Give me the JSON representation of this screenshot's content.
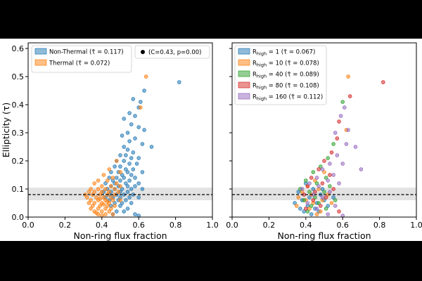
{
  "chart_data": [
    {
      "type": "scatter",
      "xlabel": "Non-ring flux fraction",
      "ylabel": "Ellipticity (τ)",
      "xlim": [
        0.0,
        1.0
      ],
      "ylim": [
        0.0,
        0.62
      ],
      "xticks": [
        "0.0",
        "0.2",
        "0.4",
        "0.6",
        "0.8",
        "1.0"
      ],
      "yticks": [
        "0.0",
        "0.1",
        "0.2",
        "0.3",
        "0.4",
        "0.5",
        "0.6"
      ],
      "reference_line": {
        "y": 0.08,
        "band": [
          0.06,
          0.105
        ]
      },
      "legend_left": [
        {
          "label": "Non-Thermal (τ̄ = 0.117)",
          "color": "#1f77b4"
        },
        {
          "label": "Thermal (τ̄ = 0.072)",
          "color": "#ff7f0e"
        }
      ],
      "legend_right": [
        {
          "label": "(C=0.43, p=0.00)",
          "color": "#000000"
        }
      ],
      "series": [
        {
          "name": "Non-Thermal",
          "color": "#1f77b4",
          "points": [
            [
              0.82,
              0.48
            ],
            [
              0.63,
              0.45
            ],
            [
              0.61,
              0.41
            ],
            [
              0.57,
              0.42
            ],
            [
              0.6,
              0.39
            ],
            [
              0.55,
              0.37
            ],
            [
              0.52,
              0.35
            ],
            [
              0.58,
              0.36
            ],
            [
              0.56,
              0.33
            ],
            [
              0.6,
              0.32
            ],
            [
              0.63,
              0.31
            ],
            [
              0.54,
              0.3
            ],
            [
              0.51,
              0.29
            ],
            [
              0.58,
              0.28
            ],
            [
              0.55,
              0.27
            ],
            [
              0.62,
              0.26
            ],
            [
              0.67,
              0.25
            ],
            [
              0.52,
              0.25
            ],
            [
              0.54,
              0.24
            ],
            [
              0.57,
              0.23
            ],
            [
              0.53,
              0.22
            ],
            [
              0.5,
              0.22
            ],
            [
              0.56,
              0.21
            ],
            [
              0.6,
              0.21
            ],
            [
              0.48,
              0.2
            ],
            [
              0.52,
              0.2
            ],
            [
              0.55,
              0.19
            ],
            [
              0.59,
              0.19
            ],
            [
              0.5,
              0.18
            ],
            [
              0.47,
              0.18
            ],
            [
              0.53,
              0.17
            ],
            [
              0.57,
              0.17
            ],
            [
              0.45,
              0.16
            ],
            [
              0.49,
              0.16
            ],
            [
              0.54,
              0.16
            ],
            [
              0.62,
              0.16
            ],
            [
              0.51,
              0.15
            ],
            [
              0.56,
              0.15
            ],
            [
              0.44,
              0.14
            ],
            [
              0.48,
              0.14
            ],
            [
              0.52,
              0.14
            ],
            [
              0.58,
              0.14
            ],
            [
              0.46,
              0.13
            ],
            [
              0.5,
              0.13
            ],
            [
              0.55,
              0.13
            ],
            [
              0.42,
              0.12
            ],
            [
              0.47,
              0.12
            ],
            [
              0.53,
              0.12
            ],
            [
              0.6,
              0.12
            ],
            [
              0.45,
              0.11
            ],
            [
              0.49,
              0.11
            ],
            [
              0.54,
              0.11
            ],
            [
              0.58,
              0.11
            ],
            [
              0.43,
              0.1
            ],
            [
              0.47,
              0.1
            ],
            [
              0.51,
              0.1
            ],
            [
              0.56,
              0.1
            ],
            [
              0.62,
              0.1
            ],
            [
              0.41,
              0.09
            ],
            [
              0.45,
              0.09
            ],
            [
              0.5,
              0.09
            ],
            [
              0.54,
              0.09
            ],
            [
              0.44,
              0.08
            ],
            [
              0.48,
              0.08
            ],
            [
              0.52,
              0.08
            ],
            [
              0.57,
              0.08
            ],
            [
              0.42,
              0.07
            ],
            [
              0.46,
              0.07
            ],
            [
              0.5,
              0.07
            ],
            [
              0.55,
              0.07
            ],
            [
              0.6,
              0.07
            ],
            [
              0.44,
              0.06
            ],
            [
              0.49,
              0.06
            ],
            [
              0.53,
              0.06
            ],
            [
              0.47,
              0.05
            ],
            [
              0.51,
              0.05
            ],
            [
              0.56,
              0.05
            ],
            [
              0.45,
              0.04
            ],
            [
              0.5,
              0.04
            ],
            [
              0.54,
              0.03
            ],
            [
              0.48,
              0.02
            ],
            [
              0.52,
              0.02
            ],
            [
              0.58,
              0.01
            ],
            [
              0.46,
              0.01
            ],
            [
              0.6,
              0.005
            ]
          ]
        },
        {
          "name": "Thermal",
          "color": "#ff7f0e",
          "points": [
            [
              0.64,
              0.5
            ],
            [
              0.61,
              0.39
            ],
            [
              0.48,
              0.2
            ],
            [
              0.44,
              0.17
            ],
            [
              0.5,
              0.16
            ],
            [
              0.41,
              0.15
            ],
            [
              0.46,
              0.14
            ],
            [
              0.38,
              0.13
            ],
            [
              0.43,
              0.13
            ],
            [
              0.48,
              0.12
            ],
            [
              0.36,
              0.12
            ],
            [
              0.4,
              0.11
            ],
            [
              0.45,
              0.11
            ],
            [
              0.5,
              0.11
            ],
            [
              0.34,
              0.1
            ],
            [
              0.38,
              0.1
            ],
            [
              0.42,
              0.1
            ],
            [
              0.47,
              0.1
            ],
            [
              0.33,
              0.09
            ],
            [
              0.36,
              0.09
            ],
            [
              0.4,
              0.09
            ],
            [
              0.44,
              0.09
            ],
            [
              0.49,
              0.09
            ],
            [
              0.31,
              0.08
            ],
            [
              0.35,
              0.08
            ],
            [
              0.39,
              0.08
            ],
            [
              0.43,
              0.08
            ],
            [
              0.47,
              0.08
            ],
            [
              0.32,
              0.07
            ],
            [
              0.37,
              0.07
            ],
            [
              0.41,
              0.07
            ],
            [
              0.45,
              0.07
            ],
            [
              0.34,
              0.06
            ],
            [
              0.38,
              0.06
            ],
            [
              0.42,
              0.06
            ],
            [
              0.46,
              0.06
            ],
            [
              0.5,
              0.06
            ],
            [
              0.33,
              0.05
            ],
            [
              0.36,
              0.05
            ],
            [
              0.4,
              0.05
            ],
            [
              0.44,
              0.05
            ],
            [
              0.35,
              0.04
            ],
            [
              0.39,
              0.04
            ],
            [
              0.43,
              0.04
            ],
            [
              0.47,
              0.04
            ],
            [
              0.34,
              0.03
            ],
            [
              0.38,
              0.03
            ],
            [
              0.42,
              0.03
            ],
            [
              0.36,
              0.02
            ],
            [
              0.4,
              0.02
            ],
            [
              0.44,
              0.02
            ],
            [
              0.38,
              0.01
            ],
            [
              0.42,
              0.01
            ],
            [
              0.46,
              0.01
            ],
            [
              0.4,
              0.005
            ],
            [
              0.37,
              0.015
            ],
            [
              0.45,
              0.03
            ],
            [
              0.41,
              0.045
            ],
            [
              0.39,
              0.065
            ],
            [
              0.43,
              0.055
            ]
          ]
        }
      ]
    },
    {
      "type": "scatter",
      "xlabel": "Non-ring flux fraction",
      "xlim": [
        0.0,
        1.0
      ],
      "ylim": [
        0.0,
        0.62
      ],
      "xticks": [
        "0.0",
        "0.2",
        "0.4",
        "0.6",
        "0.8",
        "1.0"
      ],
      "reference_line": {
        "y": 0.08,
        "band": [
          0.06,
          0.105
        ]
      },
      "legend": [
        {
          "prefix": "R",
          "sub": "high",
          "suffix": " = 1 (τ̄ = 0.067)",
          "color": "#1f77b4"
        },
        {
          "prefix": "R",
          "sub": "high",
          "suffix": " = 10 (τ̄ = 0.078)",
          "color": "#ff7f0e"
        },
        {
          "prefix": "R",
          "sub": "high",
          "suffix": " = 40 (τ̄ = 0.089)",
          "color": "#2ca02c"
        },
        {
          "prefix": "R",
          "sub": "high",
          "suffix": " = 80 (τ̄ = 0.108)",
          "color": "#d62728"
        },
        {
          "prefix": "R",
          "sub": "high",
          "suffix": " = 160 (τ̄ = 0.112)",
          "color": "#9467bd"
        }
      ],
      "series": [
        {
          "name": "Rhigh = 1",
          "color": "#1f77b4",
          "points": [
            [
              0.4,
              0.12
            ],
            [
              0.44,
              0.1
            ],
            [
              0.36,
              0.09
            ],
            [
              0.48,
              0.08
            ],
            [
              0.42,
              0.07
            ],
            [
              0.38,
              0.06
            ],
            [
              0.46,
              0.05
            ],
            [
              0.5,
              0.06
            ],
            [
              0.34,
              0.05
            ],
            [
              0.41,
              0.04
            ],
            [
              0.45,
              0.03
            ],
            [
              0.39,
              0.02
            ],
            [
              0.43,
              0.01
            ],
            [
              0.47,
              0.02
            ],
            [
              0.52,
              0.04
            ],
            [
              0.37,
              0.03
            ],
            [
              0.49,
              0.1
            ],
            [
              0.55,
              0.07
            ]
          ]
        },
        {
          "name": "Rhigh = 10",
          "color": "#ff7f0e",
          "points": [
            [
              0.63,
              0.5
            ],
            [
              0.62,
              0.31
            ],
            [
              0.5,
              0.16
            ],
            [
              0.45,
              0.13
            ],
            [
              0.41,
              0.11
            ],
            [
              0.47,
              0.1
            ],
            [
              0.38,
              0.09
            ],
            [
              0.43,
              0.08
            ],
            [
              0.52,
              0.08
            ],
            [
              0.36,
              0.07
            ],
            [
              0.4,
              0.06
            ],
            [
              0.49,
              0.06
            ],
            [
              0.44,
              0.05
            ],
            [
              0.35,
              0.04
            ],
            [
              0.42,
              0.03
            ],
            [
              0.48,
              0.02
            ],
            [
              0.54,
              0.05
            ],
            [
              0.46,
              0.01
            ]
          ]
        },
        {
          "name": "Rhigh = 40",
          "color": "#2ca02c",
          "points": [
            [
              0.6,
              0.41
            ],
            [
              0.55,
              0.26
            ],
            [
              0.52,
              0.21
            ],
            [
              0.48,
              0.18
            ],
            [
              0.44,
              0.16
            ],
            [
              0.51,
              0.14
            ],
            [
              0.4,
              0.13
            ],
            [
              0.46,
              0.12
            ],
            [
              0.53,
              0.11
            ],
            [
              0.37,
              0.1
            ],
            [
              0.42,
              0.09
            ],
            [
              0.5,
              0.09
            ],
            [
              0.45,
              0.07
            ],
            [
              0.39,
              0.06
            ],
            [
              0.47,
              0.05
            ],
            [
              0.43,
              0.04
            ],
            [
              0.51,
              0.03
            ],
            [
              0.41,
              0.02
            ],
            [
              0.56,
              0.06
            ]
          ]
        },
        {
          "name": "Rhigh = 80",
          "color": "#d62728",
          "points": [
            [
              0.82,
              0.48
            ],
            [
              0.64,
              0.43
            ],
            [
              0.58,
              0.34
            ],
            [
              0.57,
              0.28
            ],
            [
              0.54,
              0.23
            ],
            [
              0.5,
              0.2
            ],
            [
              0.47,
              0.17
            ],
            [
              0.53,
              0.15
            ],
            [
              0.43,
              0.14
            ],
            [
              0.49,
              0.12
            ],
            [
              0.41,
              0.11
            ],
            [
              0.55,
              0.1
            ],
            [
              0.45,
              0.09
            ],
            [
              0.39,
              0.08
            ],
            [
              0.51,
              0.07
            ],
            [
              0.44,
              0.06
            ],
            [
              0.48,
              0.04
            ],
            [
              0.4,
              0.03
            ],
            [
              0.58,
              0.02
            ]
          ]
        },
        {
          "name": "Rhigh = 160",
          "color": "#9467bd",
          "points": [
            [
              0.61,
              0.39
            ],
            [
              0.59,
              0.36
            ],
            [
              0.63,
              0.31
            ],
            [
              0.56,
              0.3
            ],
            [
              0.62,
              0.26
            ],
            [
              0.67,
              0.25
            ],
            [
              0.7,
              0.17
            ],
            [
              0.57,
              0.22
            ],
            [
              0.53,
              0.19
            ],
            [
              0.6,
              0.19
            ],
            [
              0.49,
              0.17
            ],
            [
              0.55,
              0.15
            ],
            [
              0.46,
              0.14
            ],
            [
              0.52,
              0.13
            ],
            [
              0.42,
              0.12
            ],
            [
              0.58,
              0.12
            ],
            [
              0.47,
              0.11
            ],
            [
              0.38,
              0.1
            ],
            [
              0.53,
              0.09
            ],
            [
              0.44,
              0.08
            ],
            [
              0.49,
              0.07
            ],
            [
              0.41,
              0.05
            ],
            [
              0.56,
              0.04
            ],
            [
              0.46,
              0.03
            ],
            [
              0.52,
              0.01
            ],
            [
              0.6,
              0.005
            ]
          ]
        }
      ]
    }
  ]
}
